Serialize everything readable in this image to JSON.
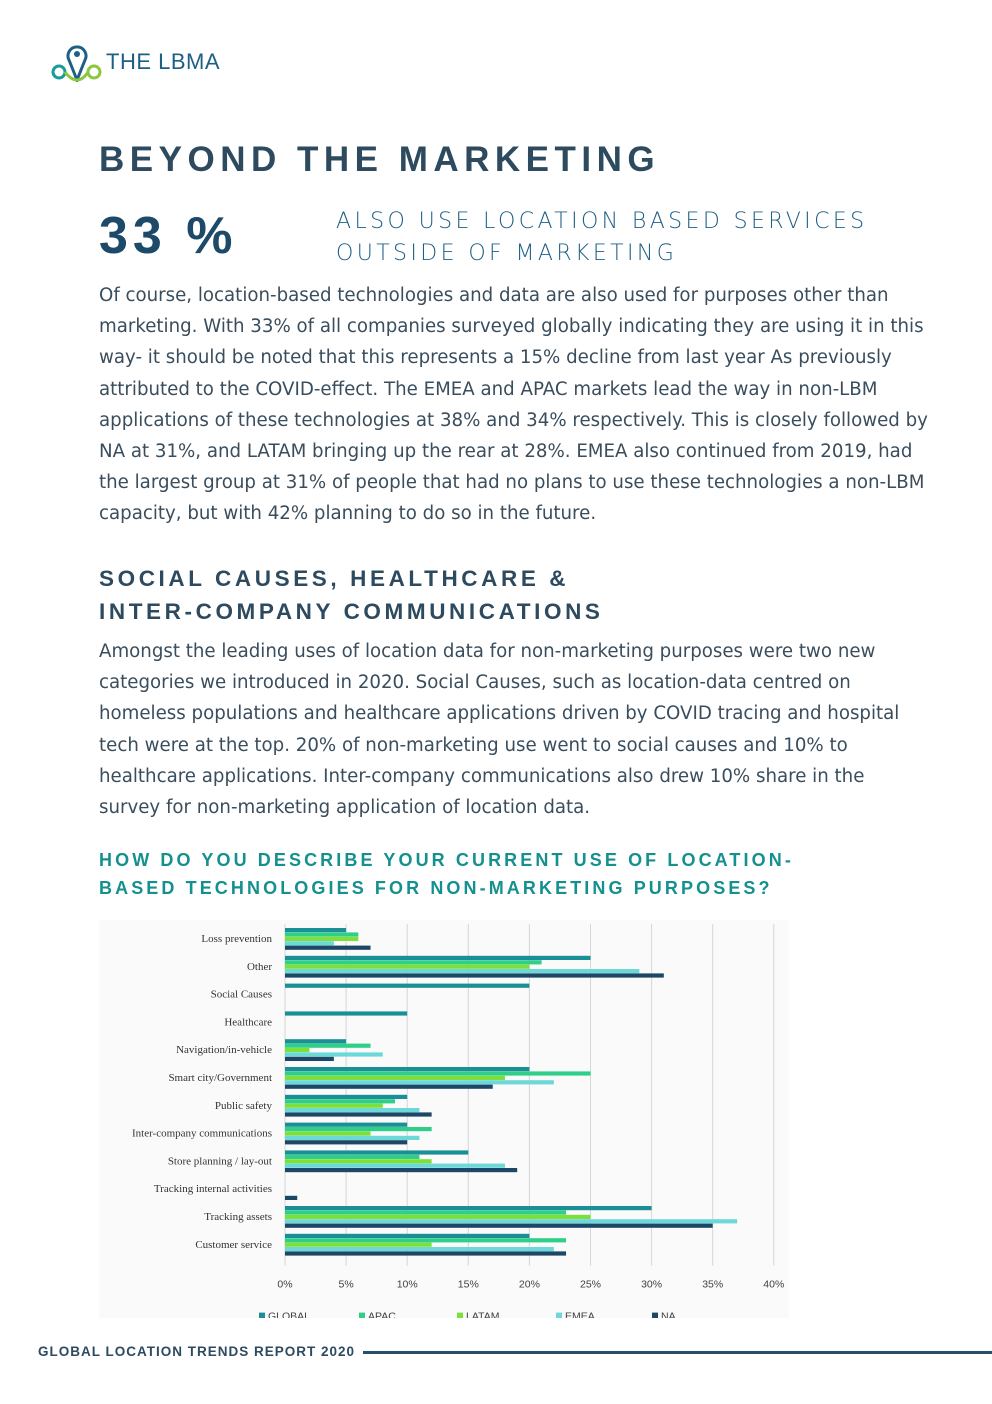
{
  "brand": {
    "name": "THE LBMA",
    "logo_teal": "#1a9a9a",
    "logo_green": "#8dc63f",
    "logo_blue": "#1e5f85"
  },
  "header": {
    "title": "BEYOND THE MARKETING"
  },
  "stat": {
    "value": "33 %",
    "line1": "ALSO USE LOCATION BASED SERVICES",
    "line2": "OUTSIDE OF MARKETING"
  },
  "intro_paragraph": "Of course, location-based technologies and data are also used for purposes other than marketing. With 33% of all companies surveyed globally indicating they are using it in this way- it should be noted that this represents a 15% decline from last year As previously attributed to the COVID-effect.  The EMEA and APAC markets lead the way in non-LBM applications of these technologies at 38% and 34% respectively. This is closely followed by NA at 31%, and LATAM bringing up the rear at 28%. EMEA also continued from 2019, had the largest group at 31% of people that had no plans to use these technologies a non-LBM capacity, but with 42% planning to do so in the future.",
  "section2": {
    "heading_line1": "SOCIAL CAUSES, HEALTHCARE &",
    "heading_line2": "INTER-COMPANY COMMUNICATIONS",
    "paragraph": "Amongst the leading uses of location data for non-marketing purposes were two new categories we introduced in 2020.  Social Causes, such as location-data centred on homeless populations and healthcare applications driven by COVID tracing and hospital tech were at the top. 20% of non-marketing use went to social causes and 10% to healthcare applications.  Inter-company communications also drew 10% share in the survey for non-marketing application of location data."
  },
  "chart_heading": {
    "line1": "HOW DO YOU DESCRIBE YOUR CURRENT USE OF LOCATION-",
    "line2": "BASED TECHNOLOGIES FOR NON-MARKETING PURPOSES?"
  },
  "chart_data": {
    "type": "bar",
    "orientation": "horizontal",
    "title": "HOW DO YOU DESCRIBE YOUR CURRENT USE OF LOCATION-BASED TECHNOLOGIES FOR NON-MARKETING PURPOSES?",
    "categories": [
      "Loss prevention",
      "Other",
      "Social Causes",
      "Healthcare",
      "Navigation/in-vehicle",
      "Smart city/Government",
      "Public safety",
      "Inter-company communications",
      "Store planning / lay-out",
      "Tracking internal activities",
      "Tracking assets",
      "Customer service"
    ],
    "series": [
      {
        "name": "GLOBAL",
        "color": "#1a8f95",
        "values": [
          5,
          25,
          20,
          10,
          5,
          20,
          10,
          10,
          15,
          0,
          30,
          20
        ]
      },
      {
        "name": "APAC",
        "color": "#2fcf8a",
        "values": [
          6,
          21,
          0,
          0,
          7,
          25,
          9,
          12,
          11,
          0,
          23,
          23
        ]
      },
      {
        "name": "LATAM",
        "color": "#7de03a",
        "values": [
          6,
          20,
          0,
          0,
          2,
          18,
          8,
          7,
          12,
          0,
          25,
          12
        ]
      },
      {
        "name": "EMEA",
        "color": "#6dd8d8",
        "values": [
          4,
          29,
          0,
          0,
          8,
          22,
          11,
          11,
          18,
          0,
          37,
          22
        ]
      },
      {
        "name": "NA",
        "color": "#1c4766",
        "values": [
          7,
          31,
          0,
          0,
          4,
          17,
          12,
          10,
          19,
          1,
          35,
          23
        ]
      }
    ],
    "xlim": [
      0,
      40
    ],
    "xticks": [
      "0%",
      "5%",
      "10%",
      "15%",
      "20%",
      "25%",
      "30%",
      "35%",
      "40%"
    ],
    "xtick_values": [
      0,
      5,
      10,
      15,
      20,
      25,
      30,
      35,
      40
    ],
    "grid": "vertical",
    "legend": "bottom"
  },
  "footer": {
    "text": "GLOBAL LOCATION TRENDS REPORT 2020"
  }
}
